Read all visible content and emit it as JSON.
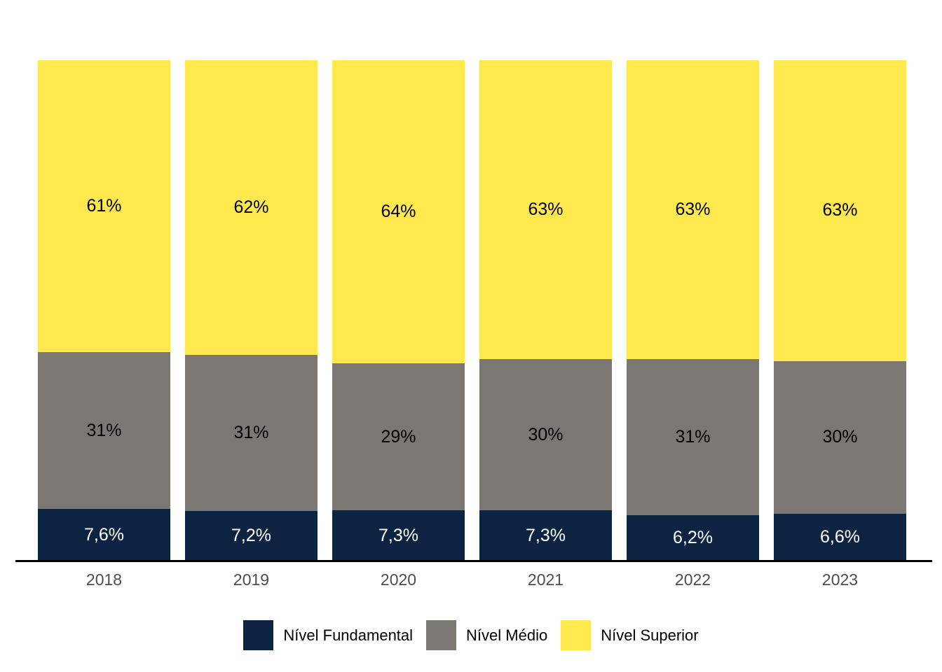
{
  "chart_data": {
    "type": "bar",
    "stacked": true,
    "orientation": "vertical",
    "title": "",
    "xlabel": "",
    "ylabel": "",
    "categories": [
      "2018",
      "2019",
      "2020",
      "2021",
      "2022",
      "2023"
    ],
    "series": [
      {
        "name": "Nível Fundamental",
        "color": "#0D2342",
        "label_color": "#FFFFFF",
        "values": [
          7.6,
          7.2,
          7.3,
          7.3,
          6.2,
          6.6
        ],
        "labels": [
          "7,6%",
          "7,2%",
          "7,3%",
          "7,3%",
          "6,2%",
          "6,6%"
        ]
      },
      {
        "name": "Nível Médio",
        "color": "#7B7874",
        "label_color": "#000000",
        "values": [
          31,
          31,
          29,
          30,
          31,
          30
        ],
        "labels": [
          "31%",
          "31%",
          "29%",
          "30%",
          "31%",
          "30%"
        ]
      },
      {
        "name": "Nível Superior",
        "color": "#FFE94F",
        "label_color": "#000000",
        "values": [
          61,
          62,
          64,
          63,
          63,
          63
        ],
        "labels": [
          "61%",
          "62%",
          "64%",
          "63%",
          "63%",
          "63%"
        ]
      }
    ],
    "legend_position": "bottom",
    "grid": false,
    "y_axis_visible": false,
    "axis_color": "#000000",
    "x_tick_color": "#4D4D4D",
    "background": "#FFFFFF"
  }
}
